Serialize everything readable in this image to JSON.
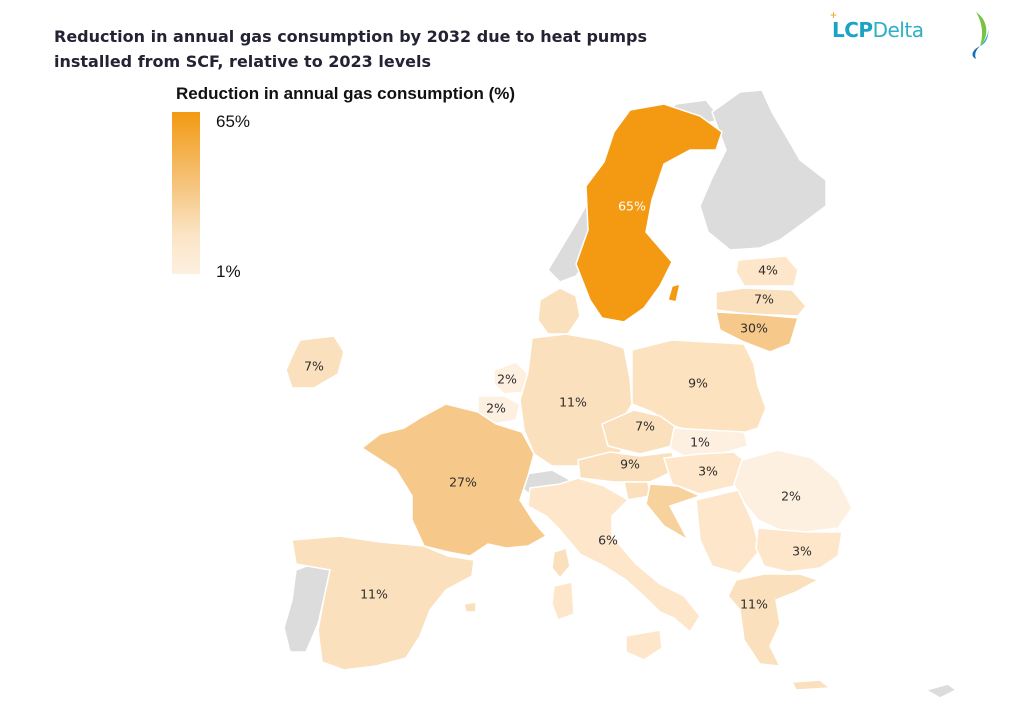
{
  "title": "Reduction in annual gas consumption by 2032 due to heat pumps installed from SCF, relative to 2023 levels",
  "logo": {
    "part1": "LCP",
    "part2": "Delta",
    "icon": "leaf-logo-icon"
  },
  "legend": {
    "title": "Reduction in annual gas consumption (%)",
    "max": "65%",
    "min": "1%",
    "color_max": "#f39a12",
    "color_min": "#fdf0e0"
  },
  "countries": [
    {
      "name": "Sweden",
      "label": "65%",
      "value": 65
    },
    {
      "name": "Estonia",
      "label": "4%",
      "value": 4
    },
    {
      "name": "Latvia",
      "label": "7%",
      "value": 7
    },
    {
      "name": "Lithuania",
      "label": "30%",
      "value": 30
    },
    {
      "name": "Ireland",
      "label": "7%",
      "value": 7
    },
    {
      "name": "Netherlands",
      "label": "2%",
      "value": 2
    },
    {
      "name": "Belgium",
      "label": "2%",
      "value": 2
    },
    {
      "name": "Germany",
      "label": "11%",
      "value": 11
    },
    {
      "name": "Poland",
      "label": "9%",
      "value": 9
    },
    {
      "name": "Czechia",
      "label": "7%",
      "value": 7
    },
    {
      "name": "Slovakia",
      "label": "1%",
      "value": 1
    },
    {
      "name": "Austria",
      "label": "9%",
      "value": 9
    },
    {
      "name": "Hungary",
      "label": "3%",
      "value": 3
    },
    {
      "name": "France",
      "label": "27%",
      "value": 27
    },
    {
      "name": "Romania",
      "label": "2%",
      "value": 2
    },
    {
      "name": "Italy",
      "label": "6%",
      "value": 6
    },
    {
      "name": "Bulgaria",
      "label": "3%",
      "value": 3
    },
    {
      "name": "Spain",
      "label": "11%",
      "value": 11
    },
    {
      "name": "Greece",
      "label": "11%",
      "value": 11
    }
  ]
}
